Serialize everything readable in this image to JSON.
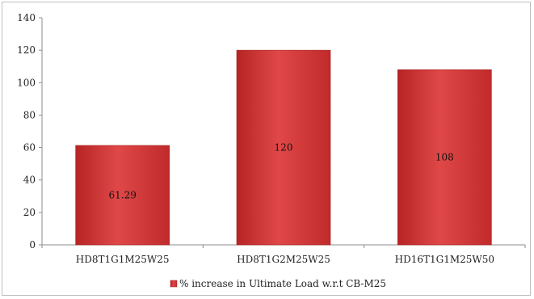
{
  "chart_data": {
    "type": "bar",
    "categories": [
      "HD8T1G1M25W25",
      "HD8T1G2M25W25",
      "HD16T1G1M25W50"
    ],
    "series": [
      {
        "name": "% increase in Ultimate Load w.r.t CB-M25",
        "values": [
          61.29,
          120,
          108
        ],
        "data_labels": [
          "61.29",
          "120",
          "108"
        ]
      }
    ],
    "ylim": [
      0,
      140
    ],
    "yticks": [
      0,
      20,
      40,
      60,
      80,
      100,
      120,
      140
    ],
    "grid": false,
    "legend_position": "bottom",
    "bar_color": "#d63a3a",
    "bar_color_dark": "#a81f1f"
  }
}
